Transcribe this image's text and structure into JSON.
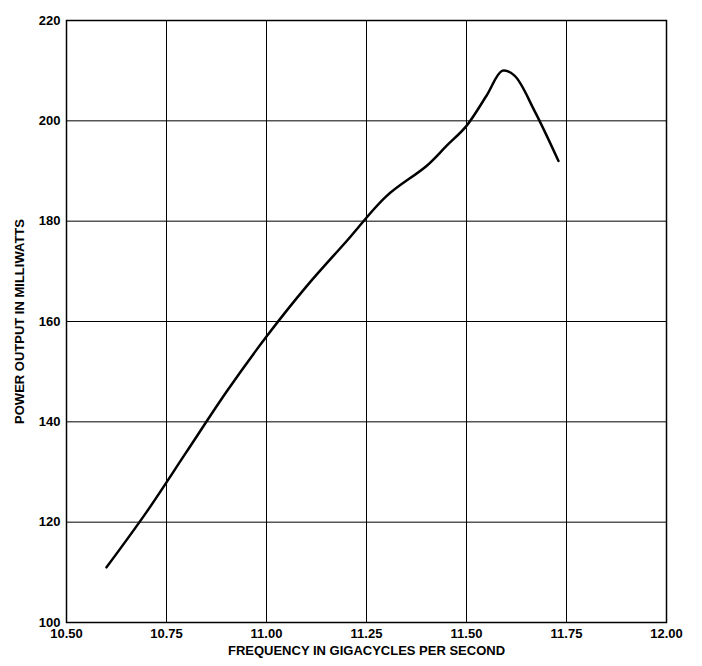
{
  "chart_data": {
    "type": "line",
    "x_label": "FREQUENCY IN GIGACYCLES PER SECOND",
    "y_label": "POWER OUTPUT IN MILLIWATTS",
    "x": [
      10.6,
      10.7,
      10.8,
      10.9,
      11.0,
      11.1,
      11.2,
      11.3,
      11.4,
      11.45,
      11.5,
      11.55,
      11.59,
      11.62,
      11.67,
      11.73
    ],
    "values": [
      111,
      122,
      134,
      146,
      157,
      167,
      176,
      185,
      191,
      195,
      199,
      205,
      210,
      209,
      202,
      192
    ],
    "color": "#000000",
    "xlim": [
      10.5,
      12.0
    ],
    "xticks": [
      {
        "value": 10.5,
        "label": "10.50"
      },
      {
        "value": 10.75,
        "label": "10.75"
      },
      {
        "value": 11.0,
        "label": "11.00"
      },
      {
        "value": 11.25,
        "label": "11.25"
      },
      {
        "value": 11.5,
        "label": "11.50"
      },
      {
        "value": 11.75,
        "label": "11.75"
      },
      {
        "value": 12.0,
        "label": "12.00"
      }
    ],
    "ylim": [
      100,
      220
    ],
    "yticks": [
      100,
      120,
      140,
      160,
      180,
      200,
      220
    ],
    "grid": true
  }
}
